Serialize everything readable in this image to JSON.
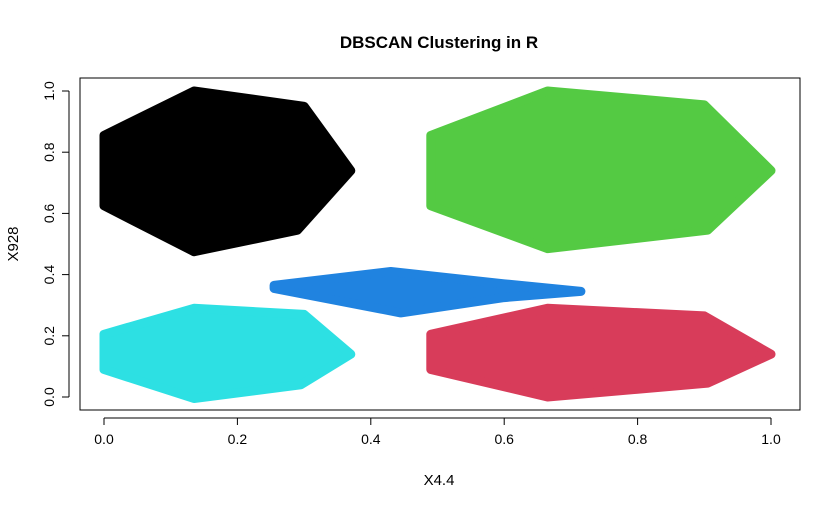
{
  "chart_data": {
    "type": "scatter",
    "title": "DBSCAN Clustering in R",
    "xlabel": "X4.4",
    "ylabel": "X928",
    "xlim": [
      0,
      1
    ],
    "ylim": [
      0,
      1
    ],
    "x_ticks": [
      "0.0",
      "0.2",
      "0.4",
      "0.6",
      "0.8",
      "1.0"
    ],
    "y_ticks": [
      "0.0",
      "0.2",
      "0.4",
      "0.6",
      "0.8",
      "1.0"
    ],
    "grid": false,
    "legend": "none",
    "clusters": [
      {
        "color": "#000000",
        "hull": [
          [
            0.0,
            0.855
          ],
          [
            0.135,
            1.0
          ],
          [
            0.3,
            0.95
          ],
          [
            0.37,
            0.74
          ],
          [
            0.29,
            0.545
          ],
          [
            0.135,
            0.475
          ],
          [
            0.0,
            0.625
          ]
        ]
      },
      {
        "color": "#54CA43",
        "hull": [
          [
            0.49,
            0.855
          ],
          [
            0.665,
            1.0
          ],
          [
            0.9,
            0.955
          ],
          [
            1.0,
            0.74
          ],
          [
            0.905,
            0.545
          ],
          [
            0.665,
            0.485
          ],
          [
            0.49,
            0.625
          ]
        ]
      },
      {
        "color": "#2083E0",
        "hull": [
          [
            0.255,
            0.365
          ],
          [
            0.43,
            0.41
          ],
          [
            0.6,
            0.37
          ],
          [
            0.715,
            0.345
          ],
          [
            0.6,
            0.325
          ],
          [
            0.445,
            0.275
          ],
          [
            0.255,
            0.355
          ]
        ]
      },
      {
        "color": "#2DE0E3",
        "hull": [
          [
            0.0,
            0.205
          ],
          [
            0.135,
            0.29
          ],
          [
            0.3,
            0.27
          ],
          [
            0.37,
            0.14
          ],
          [
            0.295,
            0.04
          ],
          [
            0.135,
            -0.005
          ],
          [
            0.0,
            0.09
          ]
        ]
      },
      {
        "color": "#D83C5A",
        "hull": [
          [
            0.49,
            0.205
          ],
          [
            0.665,
            0.29
          ],
          [
            0.9,
            0.265
          ],
          [
            1.0,
            0.14
          ],
          [
            0.905,
            0.045
          ],
          [
            0.665,
            0.0
          ],
          [
            0.49,
            0.09
          ]
        ]
      }
    ]
  }
}
